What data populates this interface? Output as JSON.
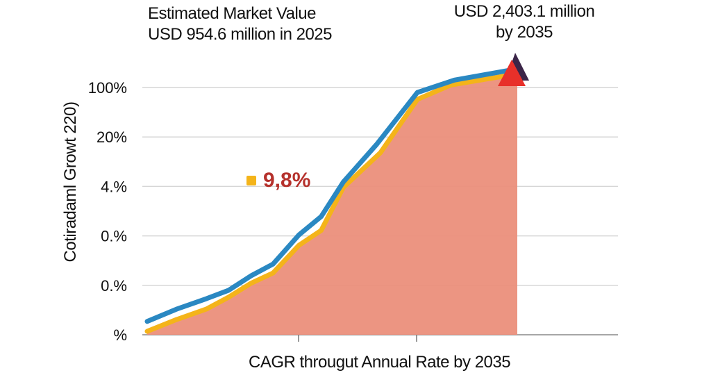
{
  "chart_data": {
    "type": "area",
    "title_lines": [
      "Estimated Market Value",
      "USD 954.6 million in 2025"
    ],
    "end_annotation_lines": [
      "USD 2,403.1 million",
      "by 2035"
    ],
    "cagr_label": "9,8%",
    "xlabel": "CAGR througut Annual Rate by 2035",
    "ylabel": "Cotiradaml Growt 220)",
    "yticks": [
      "100%",
      "20%",
      "4.%",
      "0.%",
      "0.%",
      "%"
    ],
    "grid": true,
    "series": [
      {
        "color": "#2a88c2",
        "x": [
          2025,
          2025.8,
          2026.6,
          2027.2,
          2027.8,
          2028.4,
          2029.1,
          2029.7,
          2030.3,
          2031.2,
          2032.3,
          2033.3,
          2034.8
        ],
        "y": [
          0.27,
          0.52,
          0.73,
          0.9,
          1.19,
          1.43,
          2.02,
          2.39,
          3.09,
          3.85,
          4.9,
          5.15,
          5.35
        ]
      },
      {
        "color": "#f4b41a",
        "fill": "#eb8f7b",
        "x": [
          2025,
          2025.8,
          2026.6,
          2027.2,
          2027.8,
          2028.4,
          2029.1,
          2029.7,
          2030.3,
          2031.3,
          2032.3,
          2033.2,
          2034.8
        ],
        "y": [
          0.07,
          0.31,
          0.52,
          0.76,
          1.04,
          1.25,
          1.81,
          2.11,
          2.98,
          3.68,
          4.76,
          5.05,
          5.25
        ]
      }
    ],
    "marker_colors": [
      "#e8302a",
      "#3b2548"
    ],
    "label_colors": {
      "cagr": "#b5312c",
      "cagr_swatch": "#f4b41a"
    }
  }
}
